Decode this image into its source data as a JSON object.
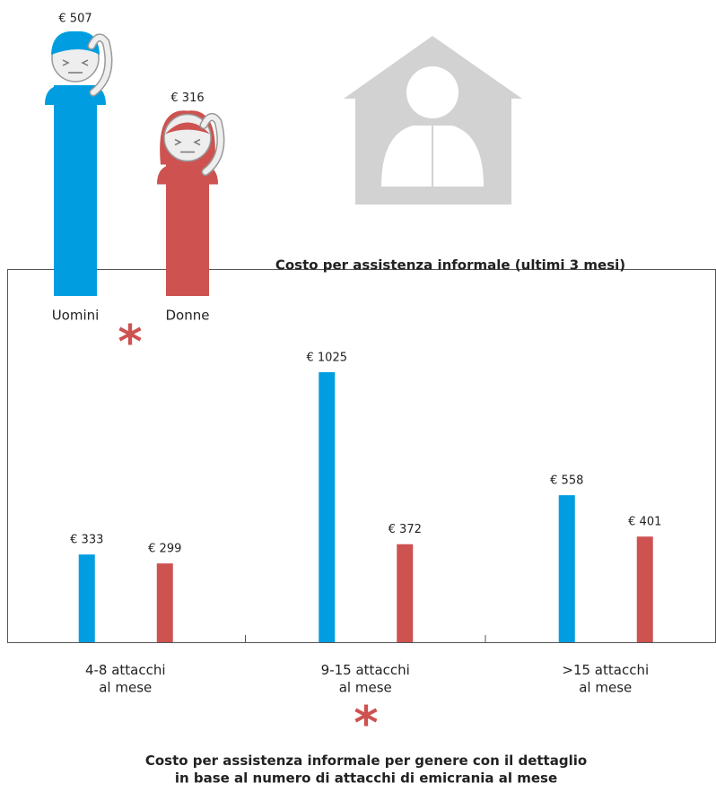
{
  "chart_data": [
    {
      "type": "figure-bar",
      "title": "Costo per assistenza informale (ultimi 3 mesi)",
      "categories": [
        "Uomini",
        "Donne"
      ],
      "values": [
        507,
        316
      ],
      "value_labels": [
        "€ 507",
        "€ 316"
      ],
      "colors": [
        "#009ee0",
        "#cd5250"
      ],
      "annotation": "*"
    },
    {
      "type": "grouped-bar",
      "title": "Costo per assistenza informale per genere con il dettaglio\nin base al numero di attacchi di emicrania al mese",
      "categories": [
        "4-8 attacchi\nal mese",
        "9-15 attacchi\nal mese",
        ">15 attacchi\nal mese"
      ],
      "series": [
        {
          "name": "Uomini",
          "color": "#009ee0",
          "values": [
            333,
            1025,
            558
          ],
          "value_labels": [
            "€ 333",
            "€ 1025",
            "€ 558"
          ]
        },
        {
          "name": "Donne",
          "color": "#cd5250",
          "values": [
            299,
            372,
            401
          ],
          "value_labels": [
            "€ 299",
            "€ 372",
            "€ 401"
          ]
        }
      ],
      "annotation": "*"
    }
  ]
}
